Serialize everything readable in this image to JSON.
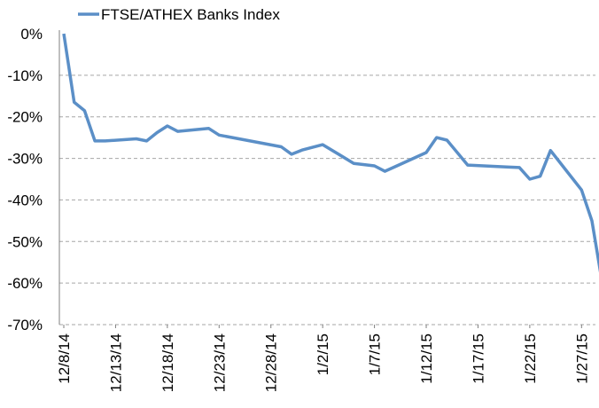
{
  "chart_data": {
    "type": "line",
    "title": "",
    "xlabel": "",
    "ylabel": "",
    "x_tick_labels": [
      "12/8/14",
      "12/13/14",
      "12/18/14",
      "12/23/14",
      "12/28/14",
      "1/2/15",
      "1/7/15",
      "1/12/15",
      "1/17/15",
      "1/22/15",
      "1/27/15"
    ],
    "y_tick_labels": [
      "0%",
      "-10%",
      "-20%",
      "-30%",
      "-40%",
      "-50%",
      "-60%",
      "-70%"
    ],
    "ylim": [
      -70,
      0
    ],
    "xlim": [
      "12/8/14",
      "1/28/15"
    ],
    "grid": "horizontal dashed",
    "legend_position": "top-left",
    "series": [
      {
        "name": "FTSE/ATHEX Banks Index",
        "color": "#5B8FC7",
        "points": [
          {
            "date": "2014-12-08",
            "value": 0.0
          },
          {
            "date": "2014-12-09",
            "value": -16.5
          },
          {
            "date": "2014-12-10",
            "value": -18.5
          },
          {
            "date": "2014-12-11",
            "value": -25.8
          },
          {
            "date": "2014-12-12",
            "value": -25.8
          },
          {
            "date": "2014-12-15",
            "value": -25.3
          },
          {
            "date": "2014-12-16",
            "value": -25.8
          },
          {
            "date": "2014-12-17",
            "value": -23.8
          },
          {
            "date": "2014-12-18",
            "value": -22.2
          },
          {
            "date": "2014-12-19",
            "value": -23.5
          },
          {
            "date": "2014-12-22",
            "value": -22.8
          },
          {
            "date": "2014-12-23",
            "value": -24.4
          },
          {
            "date": "2014-12-29",
            "value": -27.2
          },
          {
            "date": "2014-12-30",
            "value": -29.0
          },
          {
            "date": "2014-12-31",
            "value": -28.0
          },
          {
            "date": "2015-01-02",
            "value": -26.7
          },
          {
            "date": "2015-01-05",
            "value": -31.2
          },
          {
            "date": "2015-01-07",
            "value": -31.8
          },
          {
            "date": "2015-01-08",
            "value": -33.1
          },
          {
            "date": "2015-01-09",
            "value": -32.0
          },
          {
            "date": "2015-01-12",
            "value": -28.6
          },
          {
            "date": "2015-01-13",
            "value": -25.0
          },
          {
            "date": "2015-01-14",
            "value": -25.6
          },
          {
            "date": "2015-01-16",
            "value": -31.6
          },
          {
            "date": "2015-01-20",
            "value": -32.1
          },
          {
            "date": "2015-01-21",
            "value": -32.2
          },
          {
            "date": "2015-01-22",
            "value": -35.0
          },
          {
            "date": "2015-01-23",
            "value": -34.3
          },
          {
            "date": "2015-01-24",
            "value": -28.1
          },
          {
            "date": "2015-01-27",
            "value": -37.6
          },
          {
            "date": "2015-01-28",
            "value": -45.0
          },
          {
            "date": "2015-01-29",
            "value": -60.0
          }
        ]
      }
    ]
  }
}
